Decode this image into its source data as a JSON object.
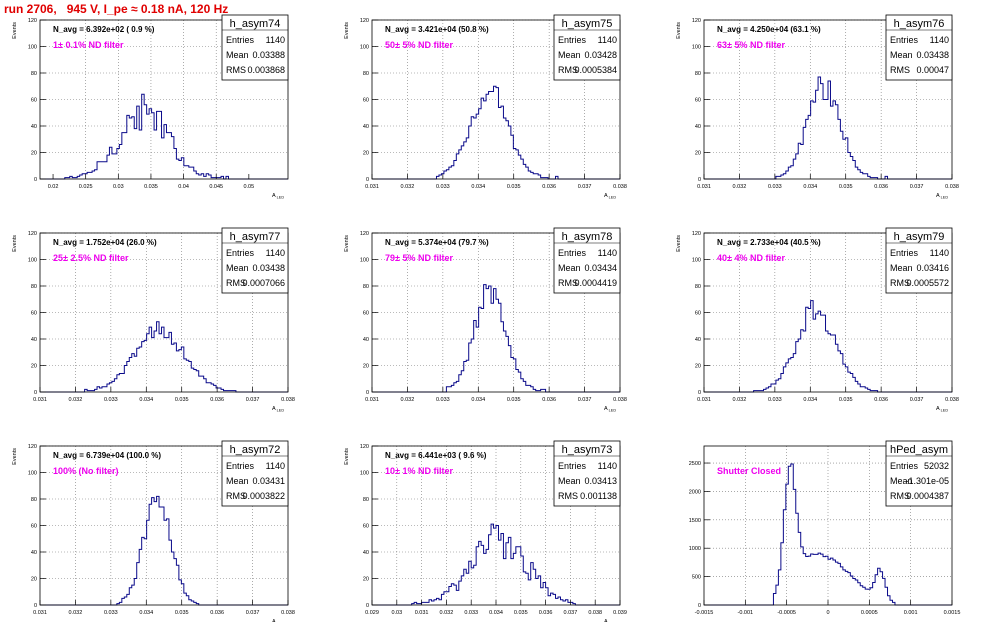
{
  "run_title": "run 2706,   945 V, I_pe ≈ 0.18 nA, 120 Hz",
  "colors": {
    "hist": "#0a0a8a",
    "note": "#ee00ee",
    "title": "#e00000",
    "axis": "#000000",
    "grid": "#777777"
  },
  "chart_data": [
    {
      "type": "bar",
      "name": "h_asym74",
      "ylabel": "Events",
      "xlabel": "A_LED",
      "xlim": [
        0.018,
        0.056
      ],
      "ylim": [
        0,
        120
      ],
      "xticks": [
        0.02,
        0.025,
        0.03,
        0.035,
        0.04,
        0.045,
        0.05
      ],
      "xtick_labels": [
        "0.02",
        "0.025",
        "0.03",
        "0.035",
        "0.04",
        "0.045",
        "0.05"
      ],
      "yticks": [
        0,
        20,
        40,
        60,
        80,
        100,
        120
      ],
      "grid": true,
      "stats": {
        "Entries": "1140",
        "Mean": "0.03388",
        "RMS": "0.003868"
      },
      "navg": "N_avg = 6.392e+02 ( 0.9 %)",
      "note": "1± 0.1% ND filter",
      "hist": {
        "mean": 0.03388,
        "sigma": 0.003868,
        "peak": 50,
        "jitter": 0.3,
        "xrange": [
          0.021,
          0.048
        ]
      }
    },
    {
      "type": "bar",
      "name": "h_asym75",
      "ylabel": "Events",
      "xlabel": "A_LED",
      "xlim": [
        0.031,
        0.038
      ],
      "ylim": [
        0,
        120
      ],
      "xticks": [
        0.031,
        0.032,
        0.033,
        0.034,
        0.035,
        0.036,
        0.037,
        0.038
      ],
      "xtick_labels": [
        "0.031",
        "0.032",
        "0.033",
        "0.034",
        "0.035",
        "0.036",
        "0.037",
        "0.038"
      ],
      "yticks": [
        0,
        20,
        40,
        60,
        80,
        100,
        120
      ],
      "grid": true,
      "stats": {
        "Entries": "1140",
        "Mean": "0.03428",
        "RMS": "0.0005384"
      },
      "navg": "N_avg = 3.421e+04 (50.8 %)",
      "note": "50± 5% ND filter",
      "hist": {
        "mean": 0.03428,
        "sigma": 0.0005384,
        "peak": 66,
        "jitter": 0.18,
        "xrange": [
          0.0328,
          0.0363
        ]
      }
    },
    {
      "type": "bar",
      "name": "h_asym76",
      "ylabel": "Events",
      "xlabel": "A_LED",
      "xlim": [
        0.031,
        0.038
      ],
      "ylim": [
        0,
        120
      ],
      "xticks": [
        0.031,
        0.032,
        0.033,
        0.034,
        0.035,
        0.036,
        0.037,
        0.038
      ],
      "xtick_labels": [
        "0.031",
        "0.032",
        "0.033",
        "0.034",
        "0.035",
        "0.036",
        "0.037",
        "0.038"
      ],
      "yticks": [
        0,
        20,
        40,
        60,
        80,
        100,
        120
      ],
      "grid": true,
      "stats": {
        "Entries": "1140",
        "Mean": "0.03438",
        "RMS": "0.00047"
      },
      "navg": "N_avg = 4.250e+04 (63.1 %)",
      "note": "63± 5% ND filter",
      "hist": {
        "mean": 0.03438,
        "sigma": 0.00047,
        "peak": 70,
        "jitter": 0.15,
        "xrange": [
          0.033,
          0.0362
        ]
      }
    },
    {
      "type": "bar",
      "name": "h_asym77",
      "ylabel": "Events",
      "xlabel": "A_LED",
      "xlim": [
        0.031,
        0.038
      ],
      "ylim": [
        0,
        120
      ],
      "xticks": [
        0.031,
        0.032,
        0.033,
        0.034,
        0.035,
        0.036,
        0.037,
        0.038
      ],
      "xtick_labels": [
        "0.031",
        "0.032",
        "0.033",
        "0.034",
        "0.035",
        "0.036",
        "0.037",
        "0.038"
      ],
      "yticks": [
        0,
        20,
        40,
        60,
        80,
        100,
        120
      ],
      "grid": true,
      "stats": {
        "Entries": "1140",
        "Mean": "0.03438",
        "RMS": "0.0007066"
      },
      "navg": "N_avg = 1.752e+04 (26.0 %)",
      "note": "25± 2.5% ND filter",
      "hist": {
        "mean": 0.03438,
        "sigma": 0.0007066,
        "peak": 47,
        "jitter": 0.14,
        "xrange": [
          0.0322,
          0.0366
        ]
      }
    },
    {
      "type": "bar",
      "name": "h_asym78",
      "ylabel": "Events",
      "xlabel": "A_LED",
      "xlim": [
        0.031,
        0.038
      ],
      "ylim": [
        0,
        120
      ],
      "xticks": [
        0.031,
        0.032,
        0.033,
        0.034,
        0.035,
        0.036,
        0.037,
        0.038
      ],
      "xtick_labels": [
        "0.031",
        "0.032",
        "0.033",
        "0.034",
        "0.035",
        "0.036",
        "0.037",
        "0.038"
      ],
      "yticks": [
        0,
        20,
        40,
        60,
        80,
        100,
        120
      ],
      "grid": true,
      "stats": {
        "Entries": "1140",
        "Mean": "0.03434",
        "RMS": "0.0004419"
      },
      "navg": "N_avg = 5.374e+04 (79.7 %)",
      "note": "79± 5% ND filter",
      "hist": {
        "mean": 0.03434,
        "sigma": 0.0004419,
        "peak": 78,
        "jitter": 0.14,
        "xrange": [
          0.0331,
          0.036
        ]
      }
    },
    {
      "type": "bar",
      "name": "h_asym79",
      "ylabel": "Events",
      "xlabel": "A_LED",
      "xlim": [
        0.031,
        0.038
      ],
      "ylim": [
        0,
        120
      ],
      "xticks": [
        0.031,
        0.032,
        0.033,
        0.034,
        0.035,
        0.036,
        0.037,
        0.038
      ],
      "xtick_labels": [
        "0.031",
        "0.032",
        "0.033",
        "0.034",
        "0.035",
        "0.036",
        "0.037",
        "0.038"
      ],
      "yticks": [
        0,
        20,
        40,
        60,
        80,
        100,
        120
      ],
      "grid": true,
      "stats": {
        "Entries": "1140",
        "Mean": "0.03416",
        "RMS": "0.0005572"
      },
      "navg": "N_avg = 2.733e+04 (40.5 %)",
      "note": "40± 4% ND filter",
      "hist": {
        "mean": 0.03416,
        "sigma": 0.0005572,
        "peak": 62,
        "jitter": 0.17,
        "xrange": [
          0.0324,
          0.036
        ]
      }
    },
    {
      "type": "bar",
      "name": "h_asym72",
      "ylabel": "Events",
      "xlabel": "A_LED",
      "xlim": [
        0.031,
        0.038
      ],
      "ylim": [
        0,
        120
      ],
      "xticks": [
        0.031,
        0.032,
        0.033,
        0.034,
        0.035,
        0.036,
        0.037,
        0.038
      ],
      "xtick_labels": [
        "0.031",
        "0.032",
        "0.033",
        "0.034",
        "0.035",
        "0.036",
        "0.037",
        "0.038"
      ],
      "yticks": [
        0,
        20,
        40,
        60,
        80,
        100,
        120
      ],
      "grid": true,
      "stats": {
        "Entries": "1140",
        "Mean": "0.03431",
        "RMS": "0.0003822"
      },
      "navg": "N_avg = 6.739e+04 (100.0 %)",
      "note": "100% (No filter)",
      "hist": {
        "mean": 0.03431,
        "sigma": 0.0003822,
        "peak": 82,
        "jitter": 0.12,
        "xrange": [
          0.0332,
          0.0355
        ]
      }
    },
    {
      "type": "bar",
      "name": "h_asym73",
      "ylabel": "Events",
      "xlabel": "A_LED",
      "xlim": [
        0.029,
        0.039
      ],
      "ylim": [
        0,
        120
      ],
      "xticks": [
        0.029,
        0.03,
        0.031,
        0.032,
        0.033,
        0.034,
        0.035,
        0.036,
        0.037,
        0.038,
        0.039
      ],
      "xtick_labels": [
        "0.029",
        "0.03",
        "0.031",
        "0.032",
        "0.033",
        "0.034",
        "0.035",
        "0.036",
        "0.037",
        "0.038",
        "0.039"
      ],
      "yticks": [
        0,
        20,
        40,
        60,
        80,
        100,
        120
      ],
      "grid": true,
      "stats": {
        "Entries": "1140",
        "Mean": "0.03413",
        "RMS": "0.001138"
      },
      "navg": "N_avg = 6.441e+03 ( 9.6 %)",
      "note": "10± 1% ND filter",
      "hist": {
        "mean": 0.03413,
        "sigma": 0.001138,
        "peak": 48,
        "jitter": 0.32,
        "xrange": [
          0.0305,
          0.0372
        ]
      }
    },
    {
      "type": "bar",
      "name": "hPed_asym",
      "ylabel": "",
      "xlabel": "",
      "xlim": [
        -0.0015,
        0.0015
      ],
      "ylim": [
        0,
        2800
      ],
      "xticks": [
        -0.0015,
        -0.001,
        -0.0005,
        0,
        0.0005,
        0.001,
        0.0015
      ],
      "xtick_labels": [
        "-0.0015",
        "-0.001",
        "-0.0005",
        "0",
        "0.0005",
        "0.001",
        "0.0015"
      ],
      "yticks": [
        0,
        500,
        1000,
        1500,
        2000,
        2500
      ],
      "grid": true,
      "stats": {
        "Entries": "52032",
        "Mean": "-1.301e-05",
        "RMS": "0.0004387"
      },
      "navg": "",
      "note": "Shutter Closed",
      "hist": {
        "kind": "pedestal",
        "components": [
          {
            "mean": -0.00046,
            "sigma": 7e-05,
            "amp": 2000
          },
          {
            "mean": -0.0003,
            "sigma": 0.00018,
            "amp": 300
          },
          {
            "mean": 0.0,
            "sigma": 0.00032,
            "amp": 760
          },
          {
            "mean": 0.00063,
            "sigma": 6e-05,
            "amp": 520
          }
        ],
        "xrange": [
          -0.00065,
          0.0008
        ]
      }
    }
  ]
}
